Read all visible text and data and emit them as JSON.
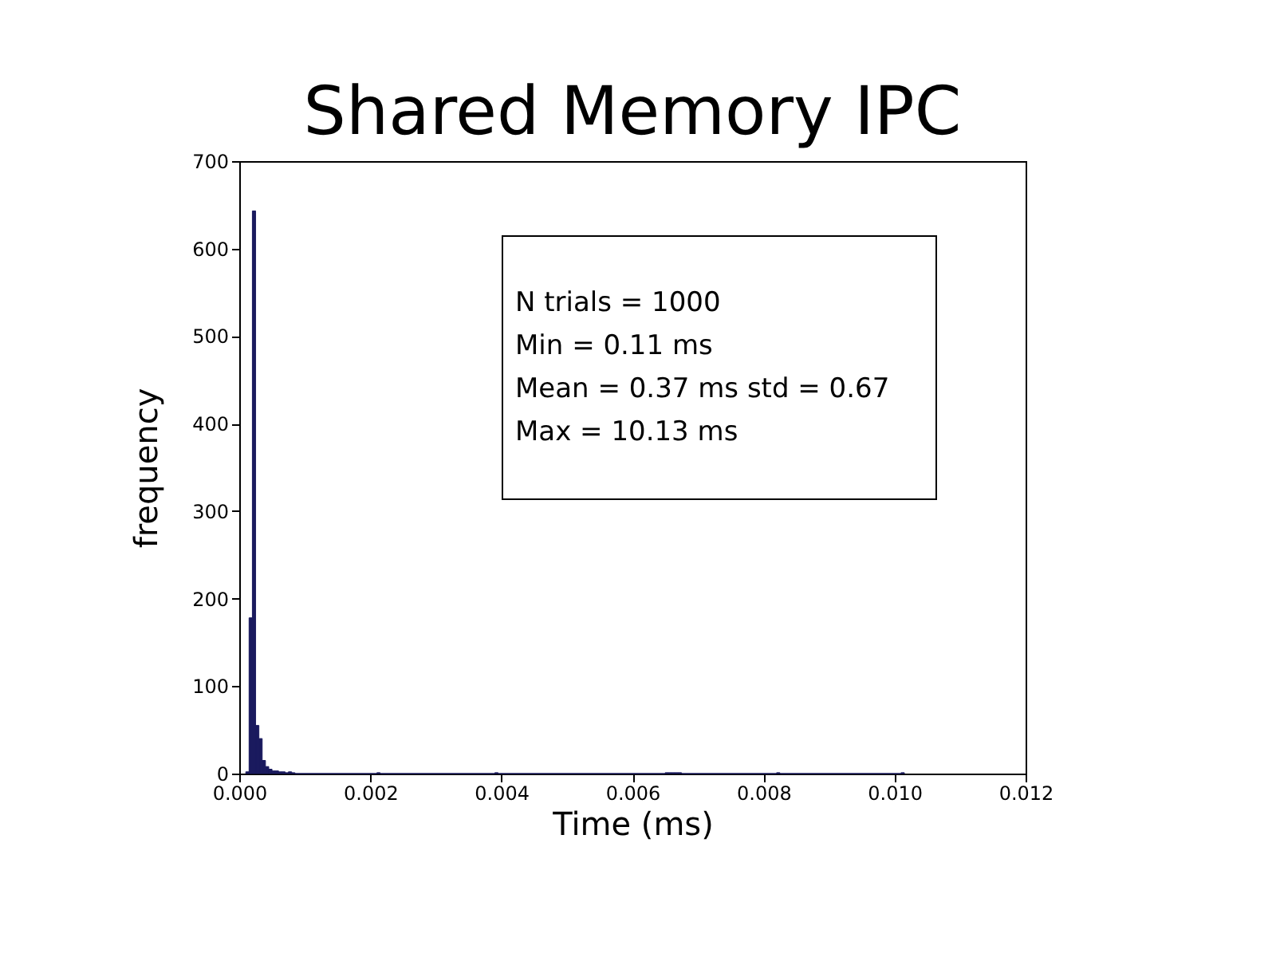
{
  "chart_data": {
    "type": "histogram",
    "title": "Shared Memory IPC",
    "xlabel": "Time (ms)",
    "ylabel": "frequency",
    "annotations": [
      "N trials = 1000",
      "Min = 0.11 ms",
      "Mean = 0.37 ms std = 0.67",
      "Max = 10.13 ms"
    ],
    "color": "#1a1a5e",
    "bins": [
      0.0001,
      0.00015,
      0.0002,
      0.00025,
      0.0003,
      0.00035,
      0.0004,
      0.00045,
      0.0005,
      0.00055,
      0.0006,
      0.00065,
      0.0007,
      0.00075,
      0.0008,
      0.00085,
      0.0021,
      0.00215,
      0.0039,
      0.00395,
      0.0065,
      0.00655,
      0.0066,
      0.00665,
      0.0067,
      0.00675,
      0.0082,
      0.00825,
      0.0101,
      0.01015
    ],
    "values": [
      2,
      178,
      643,
      55,
      40,
      15,
      8,
      5,
      3,
      3,
      2,
      2,
      1,
      2,
      1,
      0,
      1,
      0,
      1,
      0,
      1,
      1,
      1,
      1,
      1,
      0,
      1,
      0,
      1
    ],
    "xlim": [
      0.0,
      0.012
    ],
    "xticks": [
      {
        "value": 0,
        "label": "0.000"
      },
      {
        "value": 0.002,
        "label": "0.002"
      },
      {
        "value": 0.004,
        "label": "0.004"
      },
      {
        "value": 0.006,
        "label": "0.006"
      },
      {
        "value": 0.008,
        "label": "0.008"
      },
      {
        "value": 0.01,
        "label": "0.010"
      },
      {
        "value": 0.012,
        "label": "0.012"
      }
    ],
    "ylim": [
      0,
      700
    ],
    "yticks": [
      0,
      100,
      200,
      300,
      400,
      500,
      600,
      700
    ],
    "grid": false
  }
}
